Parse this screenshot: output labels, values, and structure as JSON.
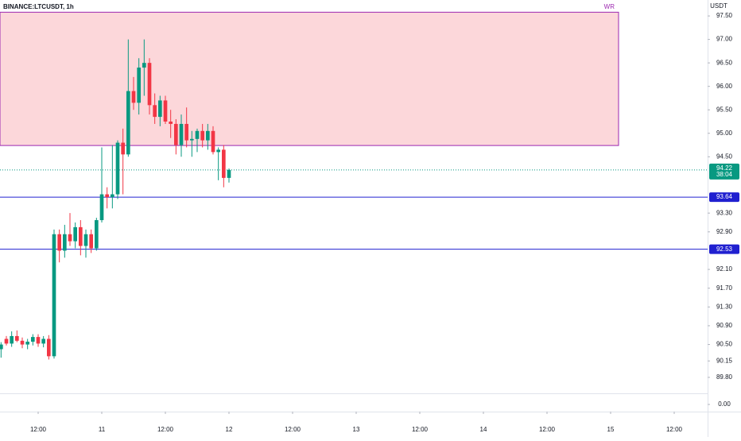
{
  "chart_data": {
    "type": "candlestick",
    "title": "BINANCE:LTCUSDT, 1h",
    "currency": "USDT",
    "up_color": "#089981",
    "down_color": "#f23645",
    "x": [
      -19,
      -18,
      -17,
      -16,
      -15,
      -14,
      -13,
      -12,
      -11,
      -10,
      -9,
      -8,
      -7,
      -6,
      -5,
      -4,
      -3,
      -2,
      -1,
      0,
      1,
      2,
      3,
      4,
      5,
      6,
      7,
      8,
      9,
      10,
      11,
      12,
      13,
      14,
      15,
      16,
      17,
      18,
      19,
      20,
      21,
      22,
      23,
      24
    ],
    "open": [
      90.4,
      90.62,
      90.52,
      90.68,
      90.58,
      90.5,
      90.56,
      90.66,
      90.52,
      90.62,
      90.25,
      92.85,
      92.5,
      92.85,
      92.7,
      93.0,
      92.6,
      92.85,
      92.55,
      93.15,
      93.7,
      93.64,
      93.7,
      94.8,
      94.55,
      95.9,
      95.65,
      96.4,
      96.5,
      95.6,
      95.35,
      95.7,
      95.25,
      95.2,
      94.75,
      95.2,
      94.85,
      94.88,
      95.05,
      94.85,
      95.05,
      94.6,
      94.65,
      94.05
    ],
    "high": [
      90.55,
      90.68,
      90.78,
      90.8,
      90.65,
      90.62,
      90.72,
      90.72,
      90.68,
      90.7,
      92.95,
      92.95,
      93.05,
      93.3,
      93.1,
      93.15,
      92.95,
      92.95,
      93.2,
      94.7,
      93.85,
      94.75,
      94.85,
      95.1,
      97.0,
      96.2,
      96.6,
      97.0,
      96.6,
      95.85,
      95.8,
      95.8,
      95.5,
      95.3,
      95.4,
      95.55,
      95.05,
      95.1,
      95.2,
      95.2,
      95.15,
      94.7,
      94.75,
      94.25
    ],
    "low": [
      90.22,
      90.48,
      90.45,
      90.55,
      90.42,
      90.4,
      90.48,
      90.45,
      90.44,
      90.18,
      90.2,
      92.25,
      92.35,
      92.6,
      92.55,
      92.4,
      92.35,
      92.45,
      92.5,
      93.1,
      93.4,
      93.4,
      93.6,
      93.7,
      94.5,
      95.5,
      95.4,
      95.8,
      95.4,
      95.2,
      95.15,
      95.2,
      94.9,
      94.55,
      94.5,
      94.7,
      94.5,
      94.6,
      94.7,
      94.65,
      94.55,
      94.0,
      93.85,
      93.95
    ],
    "close": [
      90.5,
      90.52,
      90.68,
      90.58,
      90.5,
      90.56,
      90.66,
      90.52,
      90.62,
      90.25,
      92.85,
      92.5,
      92.85,
      92.7,
      93.0,
      92.6,
      92.85,
      92.55,
      93.15,
      93.7,
      93.64,
      93.7,
      94.8,
      94.55,
      95.9,
      95.65,
      96.4,
      96.5,
      95.6,
      95.35,
      95.7,
      95.25,
      95.2,
      94.75,
      95.2,
      94.85,
      94.88,
      95.05,
      94.85,
      95.05,
      94.6,
      94.65,
      94.05,
      94.22
    ],
    "xlim": [
      -19.2,
      114.3
    ],
    "xticks": [
      {
        "value": -12,
        "label": "12:00"
      },
      {
        "value": 0,
        "label": "11"
      },
      {
        "value": 12,
        "label": "12:00"
      },
      {
        "value": 24,
        "label": "12"
      },
      {
        "value": 36,
        "label": "12:00"
      },
      {
        "value": 48,
        "label": "13"
      },
      {
        "value": 60,
        "label": "12:00"
      },
      {
        "value": 72,
        "label": "14"
      },
      {
        "value": 84,
        "label": "12:00"
      },
      {
        "value": 96,
        "label": "15"
      },
      {
        "value": 108,
        "label": "12:00"
      }
    ],
    "ylim": [
      89.46,
      97.84
    ],
    "yticks": [
      {
        "value": 97.5,
        "label": "97.50"
      },
      {
        "value": 97,
        "label": "97.00"
      },
      {
        "value": 96.5,
        "label": "96.50"
      },
      {
        "value": 96,
        "label": "96.00"
      },
      {
        "value": 95.5,
        "label": "95.50"
      },
      {
        "value": 95,
        "label": "95.00"
      },
      {
        "value": 94.5,
        "label": "94.50"
      },
      {
        "value": 93.3,
        "label": "93.30"
      },
      {
        "value": 92.9,
        "label": "92.90"
      },
      {
        "value": 92.1,
        "label": "92.10"
      },
      {
        "value": 91.7,
        "label": "91.70"
      },
      {
        "value": 91.3,
        "label": "91.30"
      },
      {
        "value": 90.9,
        "label": "90.90"
      },
      {
        "value": 90.5,
        "label": "90.50"
      },
      {
        "value": 90.15,
        "label": "90.15"
      },
      {
        "value": 89.8,
        "label": "89.80"
      }
    ],
    "zone": {
      "label": "WR",
      "top": 97.58,
      "bottom": 94.74,
      "x_end": 97.5,
      "color": "#9c27b0"
    },
    "levels": [
      {
        "value": 93.64,
        "label": "93.64"
      },
      {
        "value": 92.53,
        "label": "92.53"
      }
    ],
    "level_color": "#2020d0",
    "last_price": {
      "value": 94.22,
      "label": "94.22",
      "countdown": "38:04"
    },
    "lower_pane": {
      "ylim": [
        -0.9,
        1.3
      ],
      "yticks": [
        {
          "value": 0,
          "label": "0.00"
        }
      ]
    }
  }
}
